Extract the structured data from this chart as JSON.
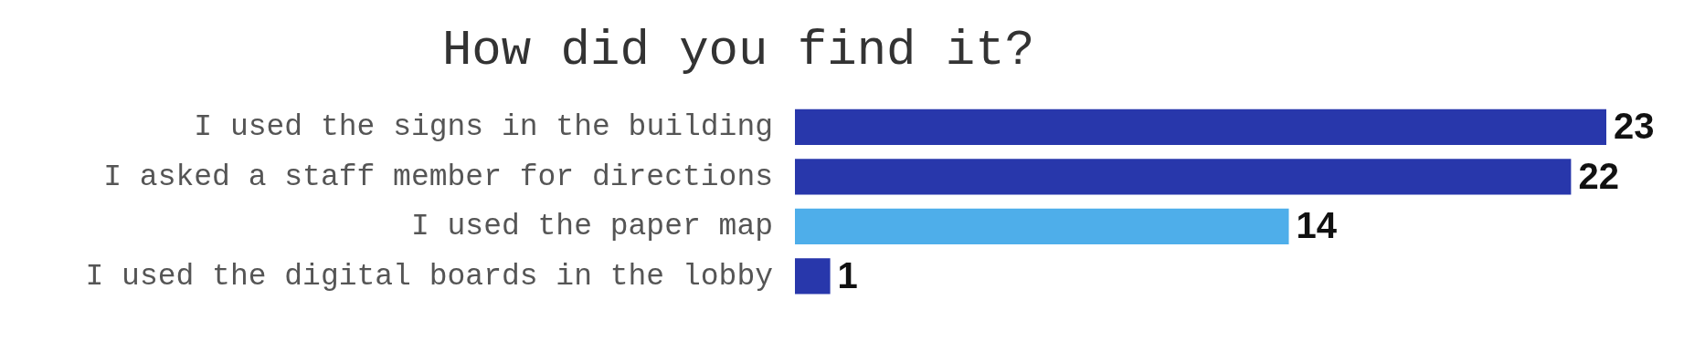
{
  "chart_data": {
    "type": "bar",
    "orientation": "horizontal",
    "title": "How did you find it?",
    "categories": [
      "I used the signs in the building",
      "I asked a staff member for directions",
      "I used the paper map",
      "I used the digital boards in the lobby"
    ],
    "values": [
      23,
      22,
      14,
      1
    ],
    "colors": [
      "#2837ab",
      "#2837ab",
      "#4eaeea",
      "#2837ab"
    ],
    "data_labels": true
  }
}
